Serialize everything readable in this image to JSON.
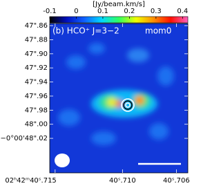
{
  "chart_data": {
    "type": "image",
    "title": "(b) HCO⁺ J=3−2",
    "label": "mom0",
    "colorbar": {
      "label": "[Jy/beam.km/s]",
      "lim": [
        -0.1,
        0.42
      ],
      "ticks": [
        -0.1,
        0,
        0.1,
        0.2,
        0.3,
        0.4
      ],
      "colormap": [
        "#000000",
        "#0010c0",
        "#1060ff",
        "#00d8ff",
        "#30ff60",
        "#f0ff00",
        "#ff9000",
        "#ff1000",
        "#ff60c0"
      ]
    },
    "xlim": [
      40.7154,
      40.70515
    ],
    "xticks": [
      {
        "value": 40.715,
        "label": "02ʰ42ᵐ40ˢ.715"
      },
      {
        "value": 40.71,
        "label": "40ˢ.710"
      },
      {
        "value": 40.706,
        "label": "40ˢ.706"
      }
    ],
    "ylim": [
      47.857,
      48.069
    ],
    "yticks": [
      {
        "value": 47.86,
        "label": "47\".86"
      },
      {
        "value": 47.88,
        "label": "47\".88"
      },
      {
        "value": 47.9,
        "label": "47\".90"
      },
      {
        "value": 47.92,
        "label": "47\".92"
      },
      {
        "value": 47.94,
        "label": "47\".94"
      },
      {
        "value": 47.96,
        "label": "47\".96"
      },
      {
        "value": 47.98,
        "label": "47\".98"
      },
      {
        "value": 48.0,
        "label": "48\".00"
      },
      {
        "value": 48.02,
        "label": "−0°00'48\".02"
      }
    ]
  }
}
